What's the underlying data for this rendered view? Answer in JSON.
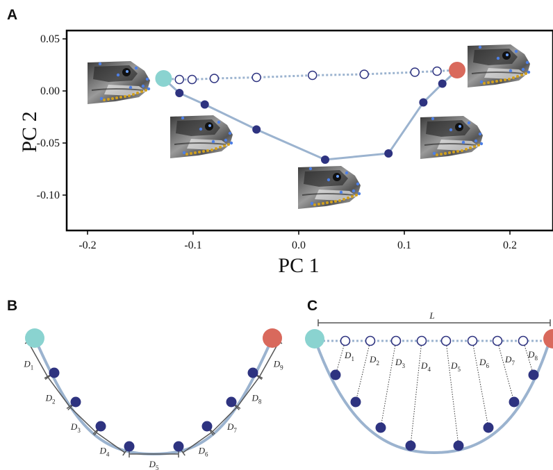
{
  "panels": {
    "a": "A",
    "b": "B",
    "c": "C"
  },
  "colors": {
    "start": "#8ad3d0",
    "end": "#d9695c",
    "path": "#9bb3cf",
    "node": "#2e3380",
    "open_node_stroke": "#2e3380",
    "bracket": "#555555"
  },
  "icons": [
    "fish-head-image"
  ],
  "chart_data": {
    "type": "scatter",
    "title": "",
    "xlabel": "PC 1",
    "ylabel": "PC 2",
    "xlim": [
      -0.22,
      0.24
    ],
    "ylim": [
      -0.135,
      0.058
    ],
    "x_ticks": [
      "-0.2",
      "-0.1",
      "0.0",
      "0.1",
      "0.2"
    ],
    "x_tick_values": [
      -0.2,
      -0.1,
      0.0,
      0.1,
      0.2
    ],
    "y_ticks": [
      "0.05",
      "0.00",
      "-0.05",
      "-0.10"
    ],
    "y_tick_values": [
      0.05,
      0.0,
      -0.05,
      -0.1
    ],
    "grid": false,
    "series": [
      {
        "kind": "trajectory",
        "x": [
          -0.128,
          -0.113,
          -0.089,
          -0.04,
          0.025,
          0.085,
          0.118,
          0.136,
          0.15
        ],
        "y": [
          0.012,
          -0.002,
          -0.013,
          -0.037,
          -0.066,
          -0.06,
          -0.011,
          0.007,
          0.02
        ]
      },
      {
        "kind": "straight-line-reference",
        "x": [
          -0.128,
          -0.113,
          -0.101,
          -0.08,
          -0.04,
          0.013,
          0.062,
          0.11,
          0.131,
          0.15
        ],
        "y": [
          0.012,
          0.011,
          0.011,
          0.012,
          0.013,
          0.015,
          0.016,
          0.018,
          0.019,
          0.02
        ]
      }
    ],
    "endpoints": {
      "start": [
        -0.128,
        0.012
      ],
      "end": [
        0.15,
        0.02
      ]
    }
  },
  "panel_b": {
    "labels": [
      "D1",
      "D2",
      "D3",
      "D4",
      "D5",
      "D6",
      "D7",
      "D8",
      "D9"
    ],
    "segments": [
      {
        "letter": "D",
        "sub": "1"
      },
      {
        "letter": "D",
        "sub": "2"
      },
      {
        "letter": "D",
        "sub": "3"
      },
      {
        "letter": "D",
        "sub": "4"
      },
      {
        "letter": "D",
        "sub": "5"
      },
      {
        "letter": "D",
        "sub": "6"
      },
      {
        "letter": "D",
        "sub": "7"
      },
      {
        "letter": "D",
        "sub": "8"
      },
      {
        "letter": "D",
        "sub": "9"
      }
    ]
  },
  "panel_c": {
    "length_label": "L",
    "distances": [
      {
        "letter": "D",
        "sub": "1"
      },
      {
        "letter": "D",
        "sub": "2"
      },
      {
        "letter": "D",
        "sub": "3"
      },
      {
        "letter": "D",
        "sub": "4"
      },
      {
        "letter": "D",
        "sub": "5"
      },
      {
        "letter": "D",
        "sub": "6"
      },
      {
        "letter": "D",
        "sub": "7"
      },
      {
        "letter": "D",
        "sub": "8"
      }
    ]
  }
}
